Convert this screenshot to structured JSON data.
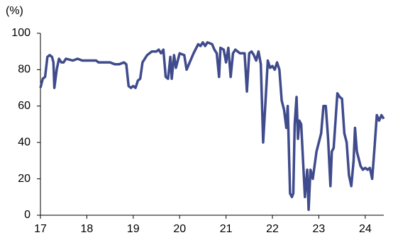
{
  "chart_data": {
    "type": "line",
    "y_label": "(%)",
    "x": [
      17.0,
      17.05,
      17.1,
      17.15,
      17.2,
      17.25,
      17.28,
      17.3,
      17.35,
      17.4,
      17.45,
      17.5,
      17.55,
      17.7,
      17.8,
      17.9,
      18.0,
      18.2,
      18.25,
      18.5,
      18.6,
      18.7,
      18.8,
      18.85,
      18.9,
      18.95,
      19.0,
      19.05,
      19.1,
      19.15,
      19.2,
      19.3,
      19.4,
      19.5,
      19.55,
      19.6,
      19.65,
      19.7,
      19.75,
      19.8,
      19.83,
      19.88,
      19.92,
      20.0,
      20.1,
      20.15,
      20.2,
      20.3,
      20.4,
      20.45,
      20.5,
      20.55,
      20.6,
      20.7,
      20.75,
      20.8,
      20.85,
      20.88,
      20.95,
      21.0,
      21.05,
      21.1,
      21.15,
      21.2,
      21.3,
      21.4,
      21.45,
      21.5,
      21.55,
      21.6,
      21.65,
      21.7,
      21.75,
      21.8,
      21.85,
      21.9,
      21.95,
      22.0,
      22.05,
      22.1,
      22.15,
      22.2,
      22.25,
      22.3,
      22.33,
      22.38,
      22.42,
      22.45,
      22.48,
      22.52,
      22.55,
      22.58,
      22.62,
      22.65,
      22.7,
      22.75,
      22.78,
      22.82,
      22.87,
      22.95,
      23.0,
      23.05,
      23.1,
      23.15,
      23.2,
      23.25,
      23.28,
      23.32,
      23.4,
      23.45,
      23.5,
      23.55,
      23.6,
      23.65,
      23.7,
      23.75,
      23.78,
      23.82,
      23.9,
      23.95,
      24.0,
      24.05,
      24.1,
      24.15,
      24.2,
      24.25,
      24.3,
      24.35,
      24.4
    ],
    "series": [
      {
        "color": "#3f4b8c",
        "values": [
          70,
          75,
          76,
          87,
          88,
          87,
          84,
          70,
          80,
          86,
          84,
          84,
          86,
          85,
          86,
          85,
          85,
          85,
          84,
          84,
          83,
          83,
          84,
          83,
          71,
          70,
          71,
          70,
          74,
          75,
          84,
          88,
          90,
          90,
          91,
          89,
          91,
          76,
          75,
          87,
          75,
          88,
          81,
          89,
          88,
          80,
          83,
          89,
          94,
          93,
          95,
          93,
          95,
          94,
          91,
          89,
          76,
          92,
          91,
          84,
          92,
          76,
          89,
          91,
          89,
          89,
          68,
          89,
          90,
          88,
          85,
          90,
          83,
          40,
          62,
          85,
          81,
          82,
          80,
          84,
          80,
          63,
          58,
          48,
          60,
          12,
          10,
          12,
          50,
          65,
          42,
          52,
          50,
          35,
          10,
          25,
          3,
          25,
          20,
          35,
          40,
          45,
          60,
          60,
          42,
          16,
          35,
          37,
          67,
          65,
          64,
          45,
          40,
          22,
          16,
          30,
          48,
          35,
          27,
          25,
          26,
          25,
          26,
          20,
          37,
          55,
          52,
          55,
          53
        ]
      }
    ],
    "xlim": [
      17,
      24.4
    ],
    "xticks": [
      17,
      18,
      19,
      20,
      21,
      22,
      23,
      24
    ],
    "ylim": [
      0,
      100
    ],
    "yticks": [
      0,
      20,
      40,
      60,
      80,
      100
    ]
  }
}
